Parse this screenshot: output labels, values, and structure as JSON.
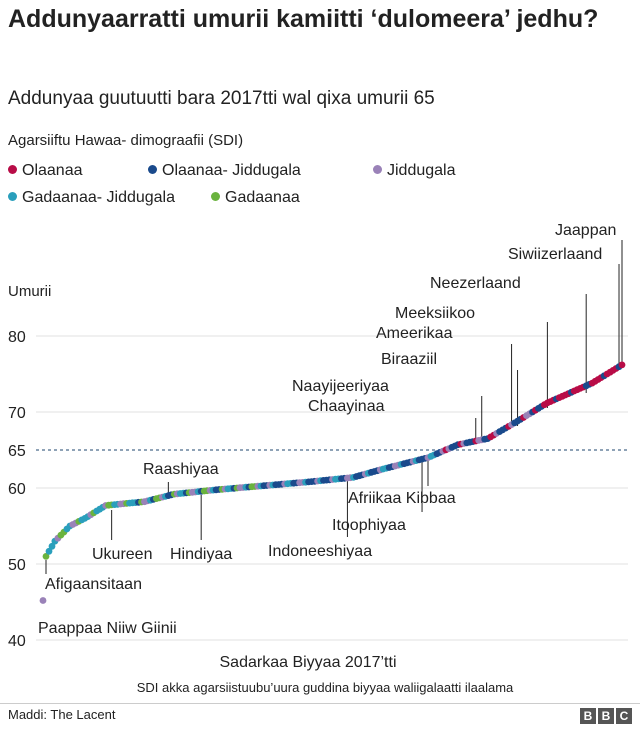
{
  "title": "Addunyaarratti umurii kamiitti ‘dulomeera’ jedhu?",
  "subtitle": "Addunyaa guutuutti bara 2017tti wal qixa umurii 65",
  "legend": {
    "title": "Agarsiiftu Hawaa- dimograafii (SDI)",
    "items": [
      {
        "label": "Olaanaa",
        "color": "#b80c47"
      },
      {
        "label": "Olaanaa- Jiddugala",
        "color": "#1a4a8c"
      },
      {
        "label": "Jiddugala",
        "color": "#9a82b8"
      },
      {
        "label": "Gadaanaa- Jiddugala",
        "color": "#2a9fbc"
      },
      {
        "label": "Gadaanaa",
        "color": "#6ab33e"
      }
    ]
  },
  "chart_data": {
    "type": "scatter",
    "ylabel": "Umurii",
    "yticks": [
      40,
      50,
      60,
      70,
      80
    ],
    "ylim": [
      40,
      84
    ],
    "reference": {
      "value": 65,
      "label": "65",
      "style": "dashed"
    },
    "xlabel": "Sadarkaa Biyyaa 2017’tti",
    "xnote": "SDI akka agarsiistuubu’uura guddina biyyaa waliigalaatti ilaalama",
    "n_points": 195,
    "anchors": [
      [
        1,
        45.2
      ],
      [
        2,
        51.0
      ],
      [
        5,
        53.0
      ],
      [
        10,
        55.0
      ],
      [
        15,
        56.0
      ],
      [
        22,
        57.7
      ],
      [
        35,
        58.2
      ],
      [
        45,
        59.2
      ],
      [
        60,
        59.8
      ],
      [
        90,
        60.8
      ],
      [
        105,
        61.4
      ],
      [
        115,
        62.5
      ],
      [
        130,
        64.0
      ],
      [
        140,
        65.7
      ],
      [
        150,
        66.5
      ],
      [
        160,
        68.8
      ],
      [
        170,
        71.2
      ],
      [
        185,
        73.8
      ],
      [
        195,
        76.2
      ]
    ],
    "categories_by_rank": [
      {
        "from": 1,
        "to": 30,
        "palette": [
          "#2a9fbc",
          "#2a9fbc",
          "#6ab33e",
          "#9a82b8"
        ]
      },
      {
        "from": 31,
        "to": 75,
        "palette": [
          "#2a9fbc",
          "#9a82b8",
          "#6ab33e",
          "#1a4a8c"
        ]
      },
      {
        "from": 76,
        "to": 135,
        "palette": [
          "#1a4a8c",
          "#2a9fbc",
          "#9a82b8",
          "#1a4a8c"
        ]
      },
      {
        "from": 136,
        "to": 165,
        "palette": [
          "#1a4a8c",
          "#9a82b8",
          "#b80c47",
          "#1a4a8c"
        ]
      },
      {
        "from": 166,
        "to": 195,
        "palette": [
          "#b80c47",
          "#b80c47",
          "#1a4a8c",
          "#b80c47"
        ]
      }
    ],
    "annotations": [
      {
        "label": "Paappaa Niiw Giinii",
        "rank": 1,
        "value": 45.2
      },
      {
        "label": "Afigaansitaan",
        "rank": 2,
        "value": 51.0
      },
      {
        "label": "Ukureen",
        "rank": 24,
        "value": 57.8
      },
      {
        "label": "Raashiyaa",
        "rank": 43,
        "value": 59.1
      },
      {
        "label": "Hindiyaa",
        "rank": 54,
        "value": 59.6
      },
      {
        "label": "Indoneeshiyaa",
        "rank": 103,
        "value": 61.5
      },
      {
        "label": "Itoophiyaa",
        "rank": 128,
        "value": 63.8
      },
      {
        "label": "Afriikaa Kibbaa",
        "rank": 130,
        "value": 64.2
      },
      {
        "label": "Chaayinaa",
        "rank": 146,
        "value": 66.2
      },
      {
        "label": "Naayijeeriyaa",
        "rank": 148,
        "value": 66.3
      },
      {
        "label": "Biraaziil",
        "rank": 160,
        "value": 68.8
      },
      {
        "label": "Ameerikaa",
        "rank": 160,
        "value": 68.8
      },
      {
        "label": "Meeksiikoo",
        "rank": 170,
        "value": 71.2
      },
      {
        "label": "Neezerlaand",
        "rank": 183,
        "value": 73.4
      },
      {
        "label": "Siwiizerlaand",
        "rank": 194,
        "value": 76.0
      },
      {
        "label": "Jaappan",
        "rank": 195,
        "value": 76.2
      }
    ]
  },
  "source": "Maddi: The Lacent",
  "brand": [
    "B",
    "B",
    "C"
  ]
}
